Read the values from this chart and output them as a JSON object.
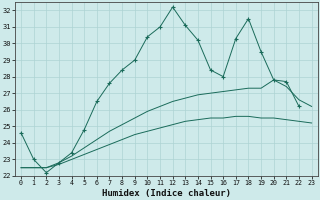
{
  "xlabel": "Humidex (Indice chaleur)",
  "bg_color": "#ceeaea",
  "grid_color": "#add4d4",
  "line_color": "#1a6b5a",
  "xlim": [
    -0.5,
    23.5
  ],
  "ylim": [
    22,
    32.5
  ],
  "yticks": [
    22,
    23,
    24,
    25,
    26,
    27,
    28,
    29,
    30,
    31,
    32
  ],
  "xticks": [
    0,
    1,
    2,
    3,
    4,
    5,
    6,
    7,
    8,
    9,
    10,
    11,
    12,
    13,
    14,
    15,
    16,
    17,
    18,
    19,
    20,
    21,
    22,
    23
  ],
  "series1_x": [
    0,
    1,
    2,
    3,
    4,
    5,
    6,
    7,
    8,
    9,
    10,
    11,
    12,
    13,
    14,
    15,
    16,
    17,
    18,
    19,
    20,
    21,
    22
  ],
  "series1_y": [
    24.6,
    23.0,
    22.2,
    22.8,
    23.4,
    24.8,
    26.5,
    27.6,
    28.4,
    29.0,
    30.4,
    31.0,
    32.2,
    31.1,
    30.2,
    28.4,
    28.0,
    30.3,
    31.5,
    29.5,
    27.8,
    27.7,
    26.2
  ],
  "series2_x": [
    0,
    1,
    2,
    3,
    4,
    5,
    6,
    7,
    8,
    9,
    10,
    11,
    12,
    13,
    14,
    15,
    16,
    17,
    18,
    19,
    20,
    21,
    22,
    23
  ],
  "series2_y": [
    22.5,
    22.5,
    22.5,
    22.8,
    23.2,
    23.7,
    24.2,
    24.7,
    25.1,
    25.5,
    25.9,
    26.2,
    26.5,
    26.7,
    26.9,
    27.0,
    27.1,
    27.2,
    27.3,
    27.3,
    27.8,
    27.4,
    26.6,
    26.2
  ],
  "series3_x": [
    0,
    1,
    2,
    3,
    4,
    5,
    6,
    7,
    8,
    9,
    10,
    11,
    12,
    13,
    14,
    15,
    16,
    17,
    18,
    19,
    20,
    21,
    22,
    23
  ],
  "series3_y": [
    22.5,
    22.5,
    22.5,
    22.7,
    23.0,
    23.3,
    23.6,
    23.9,
    24.2,
    24.5,
    24.7,
    24.9,
    25.1,
    25.3,
    25.4,
    25.5,
    25.5,
    25.6,
    25.6,
    25.5,
    25.5,
    25.4,
    25.3,
    25.2
  ]
}
